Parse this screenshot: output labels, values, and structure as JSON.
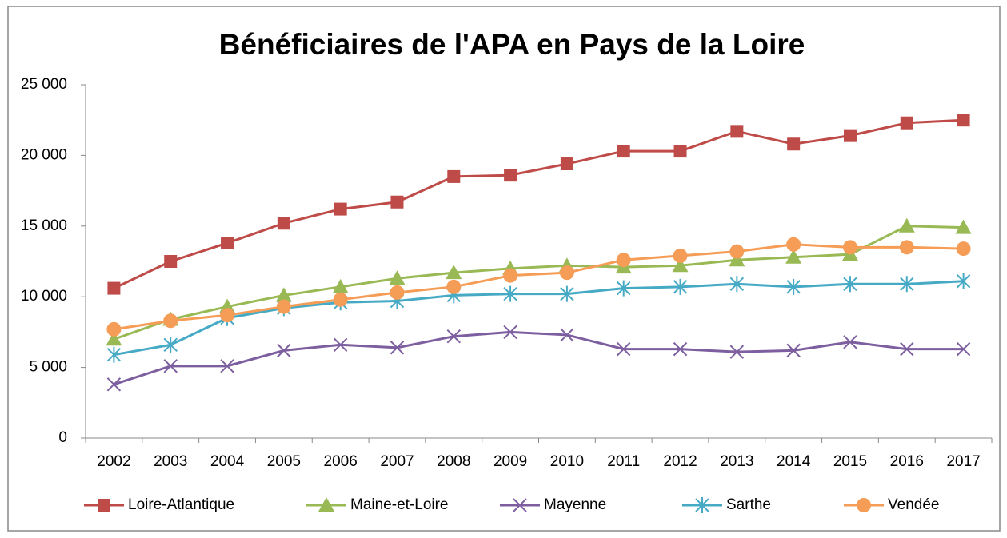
{
  "chart_data": {
    "type": "line",
    "title": "Bénéficiaires de l'APA en Pays de la Loire",
    "categories": [
      "2002",
      "2003",
      "2004",
      "2005",
      "2006",
      "2007",
      "2008",
      "2009",
      "2010",
      "2011",
      "2012",
      "2013",
      "2014",
      "2015",
      "2016",
      "2017"
    ],
    "series": [
      {
        "name": "Loire-Atlantique",
        "color": "#be4b48",
        "marker": "square",
        "values": [
          10600,
          12500,
          13800,
          15200,
          16200,
          16700,
          18500,
          18600,
          19400,
          20300,
          20300,
          21700,
          20800,
          21400,
          22300,
          22500
        ]
      },
      {
        "name": "Maine-et-Loire",
        "color": "#98b954",
        "marker": "triangle",
        "values": [
          7000,
          8400,
          9300,
          10100,
          10700,
          11300,
          11700,
          12000,
          12200,
          12100,
          12200,
          12600,
          12800,
          13000,
          15000,
          14900
        ]
      },
      {
        "name": "Mayenne",
        "color": "#7d5fa0",
        "marker": "x",
        "values": [
          3800,
          5100,
          5100,
          6200,
          6600,
          6400,
          7200,
          7500,
          7300,
          6300,
          6300,
          6100,
          6200,
          6800,
          6300,
          6300
        ]
      },
      {
        "name": "Sarthe",
        "color": "#46aac5",
        "marker": "star",
        "values": [
          5900,
          6600,
          8500,
          9200,
          9600,
          9700,
          10100,
          10200,
          10200,
          10600,
          10700,
          10900,
          10700,
          10900,
          10900,
          11100
        ]
      },
      {
        "name": "Vendée",
        "color": "#f59d56",
        "marker": "circle",
        "values": [
          7700,
          8300,
          8700,
          9300,
          9800,
          10300,
          10700,
          11500,
          11700,
          12600,
          12900,
          13200,
          13700,
          13500,
          13500,
          13400
        ]
      }
    ],
    "ylim": [
      0,
      25000
    ],
    "yticks": [
      0,
      {
        "value": 5000,
        "label": "5 000"
      },
      {
        "value": 10000,
        "label": "10 000"
      },
      {
        "value": 15000,
        "label": "15 000"
      },
      {
        "value": 20000,
        "label": "20 000"
      },
      {
        "value": 25000,
        "label": "25 000"
      }
    ],
    "legend": "bottom"
  }
}
